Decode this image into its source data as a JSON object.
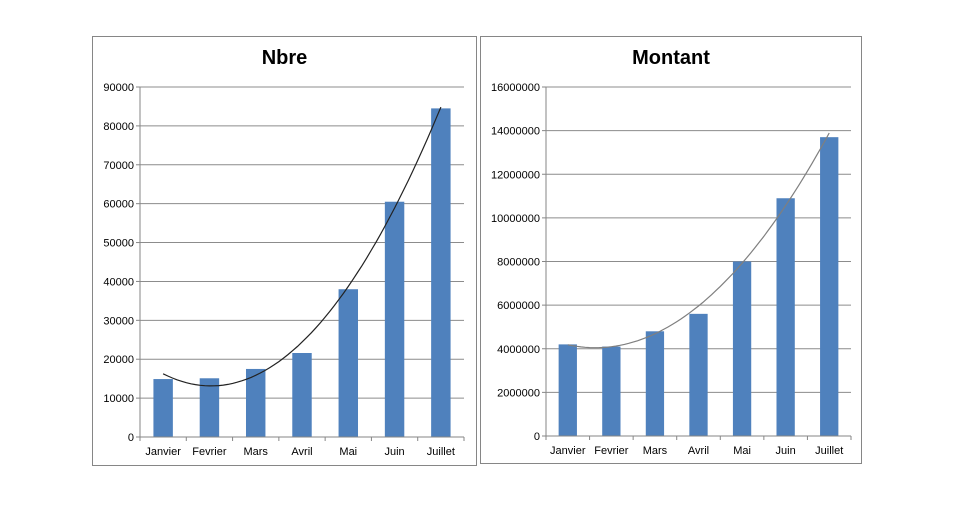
{
  "chart_data": [
    {
      "type": "bar",
      "title": "Nbre",
      "categories": [
        "Janvier",
        "Fevrier",
        "Mars",
        "Avril",
        "Mai",
        "Juin",
        "Juillet"
      ],
      "values": [
        14900,
        15100,
        17500,
        21600,
        38000,
        60500,
        84500
      ],
      "ylim": [
        0,
        90000
      ],
      "yticks": [
        "0",
        "10000",
        "20000",
        "30000",
        "40000",
        "50000",
        "60000",
        "70000",
        "80000",
        "90000"
      ],
      "grid": true,
      "trendline": "polynomial",
      "colors": {
        "bar": "#4F81BD",
        "trend": "#222222",
        "grid": "#8C8C8C"
      }
    },
    {
      "type": "bar",
      "title": "Montant",
      "categories": [
        "Janvier",
        "Fevrier",
        "Mars",
        "Avril",
        "Mai",
        "Juin",
        "Juillet"
      ],
      "values": [
        4200000,
        4100000,
        4800000,
        5600000,
        8000000,
        10900000,
        13700000
      ],
      "ylim": [
        0,
        16000000
      ],
      "yticks": [
        "0",
        "2000000",
        "4000000",
        "6000000",
        "8000000",
        "10000000",
        "12000000",
        "14000000",
        "16000000"
      ],
      "grid": true,
      "trendline": "polynomial",
      "colors": {
        "bar": "#4F81BD",
        "trend": "#7F7F7F",
        "grid": "#8C8C8C"
      }
    }
  ]
}
